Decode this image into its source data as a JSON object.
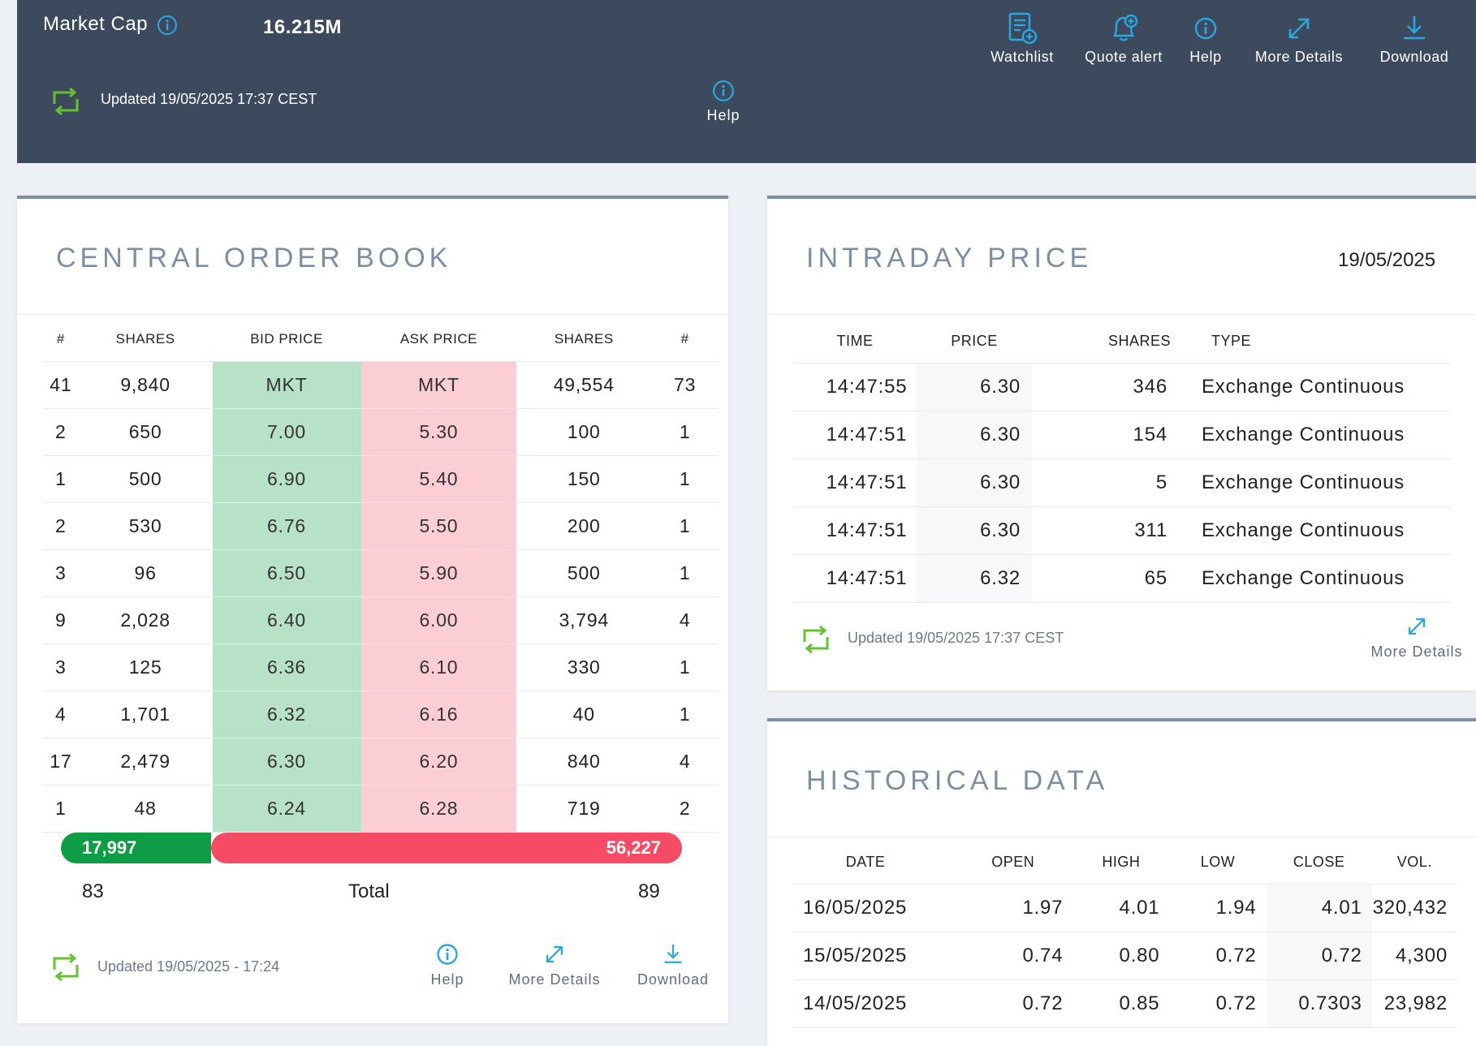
{
  "header": {
    "market_cap_label": "Market Cap",
    "market_cap_value": "16.215M",
    "updated": "Updated 19/05/2025 17:37 CEST",
    "help_mid": "Help",
    "toolbar": {
      "watchlist": "Watchlist",
      "quote_alert": "Quote alert",
      "help": "Help",
      "more_details": "More Details",
      "download": "Download"
    }
  },
  "colors": {
    "header_bg": "#3d4a5e",
    "accent_blue": "#29a7e1",
    "refresh_green": "#63c132",
    "bid_green": "#b8e2c8",
    "ask_red": "#fbcdd4",
    "total_bid": "#0e9c44",
    "total_ask": "#f54b65"
  },
  "order_book": {
    "title": "CENTRAL ORDER BOOK",
    "columns": [
      "#",
      "SHARES",
      "BID PRICE",
      "ASK PRICE",
      "SHARES",
      "#"
    ],
    "rows": [
      [
        "41",
        "9,840",
        "MKT",
        "MKT",
        "49,554",
        "73"
      ],
      [
        "2",
        "650",
        "7.00",
        "5.30",
        "100",
        "1"
      ],
      [
        "1",
        "500",
        "6.90",
        "5.40",
        "150",
        "1"
      ],
      [
        "2",
        "530",
        "6.76",
        "5.50",
        "200",
        "1"
      ],
      [
        "3",
        "96",
        "6.50",
        "5.90",
        "500",
        "1"
      ],
      [
        "9",
        "2,028",
        "6.40",
        "6.00",
        "3,794",
        "4"
      ],
      [
        "3",
        "125",
        "6.36",
        "6.10",
        "330",
        "1"
      ],
      [
        "4",
        "1,701",
        "6.32",
        "6.16",
        "40",
        "1"
      ],
      [
        "17",
        "2,479",
        "6.30",
        "6.20",
        "840",
        "4"
      ],
      [
        "1",
        "48",
        "6.24",
        "6.28",
        "719",
        "2"
      ]
    ],
    "total_bid_shares": "17,997",
    "total_ask_shares": "56,227",
    "total_bid_fraction": 0.242,
    "total_bid_orders": "83",
    "total_label": "Total",
    "total_ask_orders": "89",
    "updated": "Updated 19/05/2025 - 17:24",
    "footer": {
      "help": "Help",
      "more_details": "More Details",
      "download": "Download"
    }
  },
  "intraday": {
    "title": "INTRADAY PRICE",
    "date": "19/05/2025",
    "columns": [
      "TIME",
      "PRICE",
      "SHARES",
      "TYPE"
    ],
    "rows": [
      [
        "14:47:55",
        "6.30",
        "346",
        "Exchange Continuous"
      ],
      [
        "14:47:51",
        "6.30",
        "154",
        "Exchange Continuous"
      ],
      [
        "14:47:51",
        "6.30",
        "5",
        "Exchange Continuous"
      ],
      [
        "14:47:51",
        "6.30",
        "311",
        "Exchange Continuous"
      ],
      [
        "14:47:51",
        "6.32",
        "65",
        "Exchange Continuous"
      ]
    ],
    "updated": "Updated 19/05/2025 17:37 CEST",
    "more_details": "More Details"
  },
  "historical": {
    "title": "HISTORICAL DATA",
    "columns": [
      "DATE",
      "OPEN",
      "HIGH",
      "LOW",
      "CLOSE",
      "VOL."
    ],
    "rows": [
      [
        "16/05/2025",
        "1.97",
        "4.01",
        "1.94",
        "4.01",
        "320,432"
      ],
      [
        "15/05/2025",
        "0.74",
        "0.80",
        "0.72",
        "0.72",
        "4,300"
      ],
      [
        "14/05/2025",
        "0.72",
        "0.85",
        "0.72",
        "0.7303",
        "23,982"
      ]
    ]
  }
}
